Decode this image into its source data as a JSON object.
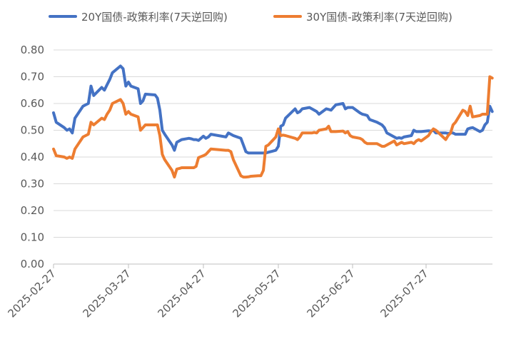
{
  "chart_data": {
    "type": "line",
    "title": "",
    "xlabel": "",
    "ylabel": "",
    "ylim": [
      0,
      0.8
    ],
    "y_ticks": [
      "0.00",
      "0.10",
      "0.20",
      "0.30",
      "0.40",
      "0.50",
      "0.60",
      "0.70",
      "0.80"
    ],
    "x_ticks": [
      "2025-02-27",
      "2025-03-27",
      "2025-04-27",
      "2025-05-27",
      "2025-06-27",
      "2025-07-27"
    ],
    "x_start": "2025-02-27",
    "x_end": "2025-08-23",
    "grid": "horizontal",
    "legend_position": "top",
    "series": [
      {
        "name": "20Y国债-政策利率(7天逆回购)",
        "color": "#4472C4",
        "points": [
          [
            "2025-02-27",
            0.565
          ],
          [
            "2025-02-28",
            0.53
          ],
          [
            "2025-03-03",
            0.51
          ],
          [
            "2025-03-04",
            0.5
          ],
          [
            "2025-03-05",
            0.505
          ],
          [
            "2025-03-06",
            0.49
          ],
          [
            "2025-03-07",
            0.545
          ],
          [
            "2025-03-10",
            0.59
          ],
          [
            "2025-03-11",
            0.595
          ],
          [
            "2025-03-12",
            0.6
          ],
          [
            "2025-03-13",
            0.665
          ],
          [
            "2025-03-14",
            0.63
          ],
          [
            "2025-03-17",
            0.66
          ],
          [
            "2025-03-18",
            0.65
          ],
          [
            "2025-03-19",
            0.67
          ],
          [
            "2025-03-20",
            0.69
          ],
          [
            "2025-03-21",
            0.715
          ],
          [
            "2025-03-24",
            0.74
          ],
          [
            "2025-03-25",
            0.73
          ],
          [
            "2025-03-26",
            0.665
          ],
          [
            "2025-03-27",
            0.68
          ],
          [
            "2025-03-28",
            0.665
          ],
          [
            "2025-03-31",
            0.655
          ],
          [
            "2025-04-01",
            0.6
          ],
          [
            "2025-04-02",
            0.61
          ],
          [
            "2025-04-03",
            0.635
          ],
          [
            "2025-04-07",
            0.632
          ],
          [
            "2025-04-08",
            0.62
          ],
          [
            "2025-04-09",
            0.575
          ],
          [
            "2025-04-10",
            0.5
          ],
          [
            "2025-04-11",
            0.485
          ],
          [
            "2025-04-14",
            0.445
          ],
          [
            "2025-04-15",
            0.425
          ],
          [
            "2025-04-16",
            0.455
          ],
          [
            "2025-04-17",
            0.46
          ],
          [
            "2025-04-18",
            0.465
          ],
          [
            "2025-04-21",
            0.47
          ],
          [
            "2025-04-22",
            0.468
          ],
          [
            "2025-04-23",
            0.465
          ],
          [
            "2025-04-24",
            0.465
          ],
          [
            "2025-04-25",
            0.462
          ],
          [
            "2025-04-27",
            0.478
          ],
          [
            "2025-04-28",
            0.47
          ],
          [
            "2025-04-29",
            0.475
          ],
          [
            "2025-04-30",
            0.485
          ],
          [
            "2025-05-06",
            0.475
          ],
          [
            "2025-05-07",
            0.49
          ],
          [
            "2025-05-08",
            0.485
          ],
          [
            "2025-05-09",
            0.48
          ],
          [
            "2025-05-12",
            0.47
          ],
          [
            "2025-05-13",
            0.445
          ],
          [
            "2025-05-14",
            0.42
          ],
          [
            "2025-05-15",
            0.415
          ],
          [
            "2025-05-16",
            0.415
          ],
          [
            "2025-05-19",
            0.415
          ],
          [
            "2025-05-20",
            0.415
          ],
          [
            "2025-05-21",
            0.415
          ],
          [
            "2025-05-22",
            0.415
          ],
          [
            "2025-05-23",
            0.418
          ],
          [
            "2025-05-26",
            0.425
          ],
          [
            "2025-05-27",
            0.44
          ],
          [
            "2025-05-28",
            0.515
          ],
          [
            "2025-05-29",
            0.52
          ],
          [
            "2025-05-30",
            0.545
          ],
          [
            "2025-06-03",
            0.58
          ],
          [
            "2025-06-04",
            0.565
          ],
          [
            "2025-06-05",
            0.57
          ],
          [
            "2025-06-06",
            0.58
          ],
          [
            "2025-06-09",
            0.585
          ],
          [
            "2025-06-10",
            0.58
          ],
          [
            "2025-06-11",
            0.575
          ],
          [
            "2025-06-12",
            0.57
          ],
          [
            "2025-06-13",
            0.56
          ],
          [
            "2025-06-16",
            0.58
          ],
          [
            "2025-06-17",
            0.578
          ],
          [
            "2025-06-18",
            0.575
          ],
          [
            "2025-06-19",
            0.585
          ],
          [
            "2025-06-20",
            0.595
          ],
          [
            "2025-06-23",
            0.6
          ],
          [
            "2025-06-24",
            0.58
          ],
          [
            "2025-06-25",
            0.585
          ],
          [
            "2025-06-26",
            0.585
          ],
          [
            "2025-06-27",
            0.585
          ],
          [
            "2025-06-30",
            0.565
          ],
          [
            "2025-07-01",
            0.56
          ],
          [
            "2025-07-02",
            0.558
          ],
          [
            "2025-07-03",
            0.555
          ],
          [
            "2025-07-04",
            0.54
          ],
          [
            "2025-07-07",
            0.53
          ],
          [
            "2025-07-08",
            0.525
          ],
          [
            "2025-07-09",
            0.52
          ],
          [
            "2025-07-10",
            0.51
          ],
          [
            "2025-07-11",
            0.49
          ],
          [
            "2025-07-14",
            0.475
          ],
          [
            "2025-07-15",
            0.47
          ],
          [
            "2025-07-16",
            0.472
          ],
          [
            "2025-07-17",
            0.47
          ],
          [
            "2025-07-18",
            0.475
          ],
          [
            "2025-07-21",
            0.48
          ],
          [
            "2025-07-22",
            0.5
          ],
          [
            "2025-07-23",
            0.495
          ],
          [
            "2025-07-24",
            0.495
          ],
          [
            "2025-07-25",
            0.495
          ],
          [
            "2025-07-28",
            0.498
          ],
          [
            "2025-07-29",
            0.497
          ],
          [
            "2025-07-30",
            0.5
          ],
          [
            "2025-07-31",
            0.49
          ],
          [
            "2025-08-04",
            0.49
          ],
          [
            "2025-08-05",
            0.488
          ],
          [
            "2025-08-06",
            0.49
          ],
          [
            "2025-08-07",
            0.49
          ],
          [
            "2025-08-08",
            0.485
          ],
          [
            "2025-08-11",
            0.485
          ],
          [
            "2025-08-12",
            0.485
          ],
          [
            "2025-08-13",
            0.505
          ],
          [
            "2025-08-14",
            0.508
          ],
          [
            "2025-08-15",
            0.51
          ],
          [
            "2025-08-18",
            0.495
          ],
          [
            "2025-08-19",
            0.5
          ],
          [
            "2025-08-20",
            0.52
          ],
          [
            "2025-08-21",
            0.53
          ],
          [
            "2025-08-22",
            0.59
          ],
          [
            "2025-08-23",
            0.57
          ]
        ]
      },
      {
        "name": "30Y国债-政策利率(7天逆回购)",
        "color": "#ED7D31",
        "points": [
          [
            "2025-02-27",
            0.43
          ],
          [
            "2025-02-28",
            0.405
          ],
          [
            "2025-03-03",
            0.4
          ],
          [
            "2025-03-04",
            0.395
          ],
          [
            "2025-03-05",
            0.4
          ],
          [
            "2025-03-06",
            0.395
          ],
          [
            "2025-03-07",
            0.43
          ],
          [
            "2025-03-10",
            0.475
          ],
          [
            "2025-03-11",
            0.48
          ],
          [
            "2025-03-12",
            0.485
          ],
          [
            "2025-03-13",
            0.53
          ],
          [
            "2025-03-14",
            0.52
          ],
          [
            "2025-03-17",
            0.545
          ],
          [
            "2025-03-18",
            0.54
          ],
          [
            "2025-03-19",
            0.56
          ],
          [
            "2025-03-20",
            0.575
          ],
          [
            "2025-03-21",
            0.6
          ],
          [
            "2025-03-24",
            0.615
          ],
          [
            "2025-03-25",
            0.6
          ],
          [
            "2025-03-26",
            0.56
          ],
          [
            "2025-03-27",
            0.57
          ],
          [
            "2025-03-28",
            0.56
          ],
          [
            "2025-03-31",
            0.55
          ],
          [
            "2025-04-01",
            0.5
          ],
          [
            "2025-04-02",
            0.51
          ],
          [
            "2025-04-03",
            0.52
          ],
          [
            "2025-04-07",
            0.52
          ],
          [
            "2025-04-08",
            0.52
          ],
          [
            "2025-04-09",
            0.48
          ],
          [
            "2025-04-10",
            0.41
          ],
          [
            "2025-04-11",
            0.39
          ],
          [
            "2025-04-14",
            0.35
          ],
          [
            "2025-04-15",
            0.325
          ],
          [
            "2025-04-16",
            0.355
          ],
          [
            "2025-04-17",
            0.357
          ],
          [
            "2025-04-18",
            0.36
          ],
          [
            "2025-04-21",
            0.36
          ],
          [
            "2025-04-22",
            0.36
          ],
          [
            "2025-04-23",
            0.36
          ],
          [
            "2025-04-24",
            0.365
          ],
          [
            "2025-04-25",
            0.398
          ],
          [
            "2025-04-27",
            0.405
          ],
          [
            "2025-04-28",
            0.41
          ],
          [
            "2025-04-29",
            0.42
          ],
          [
            "2025-04-30",
            0.43
          ],
          [
            "2025-05-06",
            0.425
          ],
          [
            "2025-05-07",
            0.425
          ],
          [
            "2025-05-08",
            0.42
          ],
          [
            "2025-05-09",
            0.39
          ],
          [
            "2025-05-12",
            0.33
          ],
          [
            "2025-05-13",
            0.325
          ],
          [
            "2025-05-14",
            0.325
          ],
          [
            "2025-05-15",
            0.326
          ],
          [
            "2025-05-16",
            0.328
          ],
          [
            "2025-05-19",
            0.33
          ],
          [
            "2025-05-20",
            0.33
          ],
          [
            "2025-05-21",
            0.35
          ],
          [
            "2025-05-22",
            0.44
          ],
          [
            "2025-05-23",
            0.445
          ],
          [
            "2025-05-26",
            0.475
          ],
          [
            "2025-05-27",
            0.505
          ],
          [
            "2025-05-28",
            0.48
          ],
          [
            "2025-05-29",
            0.482
          ],
          [
            "2025-05-30",
            0.48
          ],
          [
            "2025-06-03",
            0.47
          ],
          [
            "2025-06-04",
            0.465
          ],
          [
            "2025-06-05",
            0.475
          ],
          [
            "2025-06-06",
            0.49
          ],
          [
            "2025-06-09",
            0.49
          ],
          [
            "2025-06-10",
            0.49
          ],
          [
            "2025-06-11",
            0.492
          ],
          [
            "2025-06-12",
            0.49
          ],
          [
            "2025-06-13",
            0.5
          ],
          [
            "2025-06-16",
            0.505
          ],
          [
            "2025-06-17",
            0.515
          ],
          [
            "2025-06-18",
            0.495
          ],
          [
            "2025-06-19",
            0.495
          ],
          [
            "2025-06-20",
            0.495
          ],
          [
            "2025-06-23",
            0.497
          ],
          [
            "2025-06-24",
            0.49
          ],
          [
            "2025-06-25",
            0.495
          ],
          [
            "2025-06-26",
            0.48
          ],
          [
            "2025-06-27",
            0.475
          ],
          [
            "2025-06-30",
            0.47
          ],
          [
            "2025-07-01",
            0.465
          ],
          [
            "2025-07-02",
            0.455
          ],
          [
            "2025-07-03",
            0.45
          ],
          [
            "2025-07-04",
            0.45
          ],
          [
            "2025-07-07",
            0.45
          ],
          [
            "2025-07-08",
            0.445
          ],
          [
            "2025-07-09",
            0.44
          ],
          [
            "2025-07-10",
            0.44
          ],
          [
            "2025-07-11",
            0.445
          ],
          [
            "2025-07-14",
            0.46
          ],
          [
            "2025-07-15",
            0.445
          ],
          [
            "2025-07-16",
            0.45
          ],
          [
            "2025-07-17",
            0.455
          ],
          [
            "2025-07-18",
            0.45
          ],
          [
            "2025-07-21",
            0.455
          ],
          [
            "2025-07-22",
            0.45
          ],
          [
            "2025-07-23",
            0.46
          ],
          [
            "2025-07-24",
            0.465
          ],
          [
            "2025-07-25",
            0.46
          ],
          [
            "2025-07-28",
            0.48
          ],
          [
            "2025-07-29",
            0.495
          ],
          [
            "2025-07-30",
            0.505
          ],
          [
            "2025-07-31",
            0.5
          ],
          [
            "2025-08-04",
            0.465
          ],
          [
            "2025-08-05",
            0.48
          ],
          [
            "2025-08-06",
            0.49
          ],
          [
            "2025-08-07",
            0.52
          ],
          [
            "2025-08-08",
            0.53
          ],
          [
            "2025-08-11",
            0.575
          ],
          [
            "2025-08-12",
            0.57
          ],
          [
            "2025-08-13",
            0.555
          ],
          [
            "2025-08-14",
            0.59
          ],
          [
            "2025-08-15",
            0.55
          ],
          [
            "2025-08-18",
            0.555
          ],
          [
            "2025-08-19",
            0.56
          ],
          [
            "2025-08-20",
            0.56
          ],
          [
            "2025-08-21",
            0.56
          ],
          [
            "2025-08-22",
            0.7
          ],
          [
            "2025-08-23",
            0.695
          ]
        ]
      }
    ]
  }
}
